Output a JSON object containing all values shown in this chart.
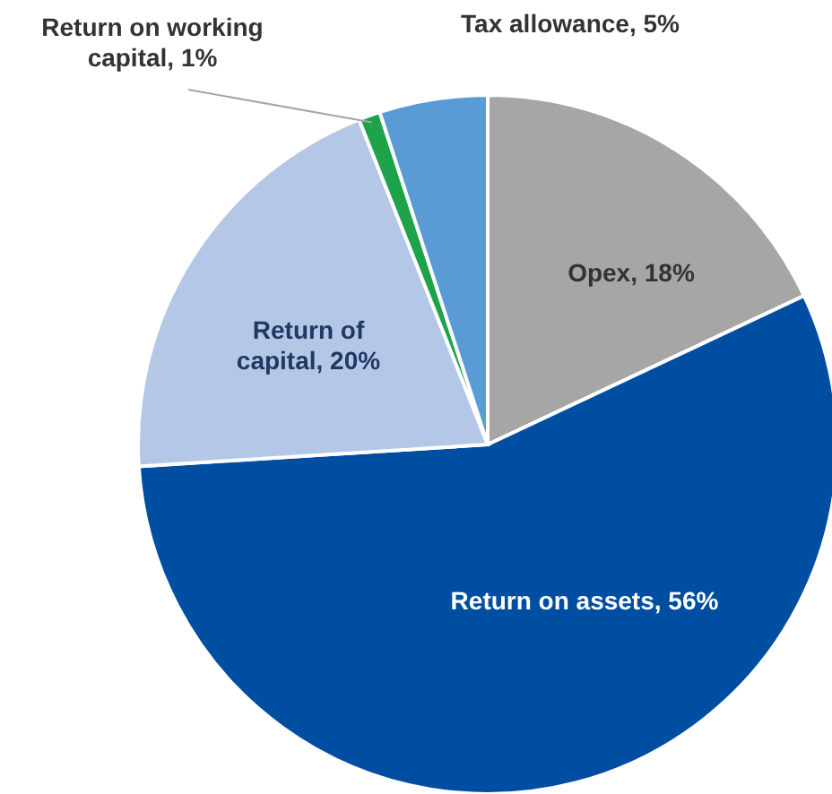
{
  "chart_data": {
    "type": "pie",
    "categories": [
      "Opex",
      "Return on assets",
      "Return of capital",
      "Return on working capital",
      "Tax allowance"
    ],
    "values": [
      18,
      56,
      20,
      1,
      5
    ],
    "value_labels": [
      "18%",
      "56%",
      "20%",
      "1%",
      "5%"
    ],
    "colors": [
      "#a6a6a6",
      "#004ea2",
      "#b4c7e7",
      "#1fa34a",
      "#5b9bd5"
    ]
  }
}
